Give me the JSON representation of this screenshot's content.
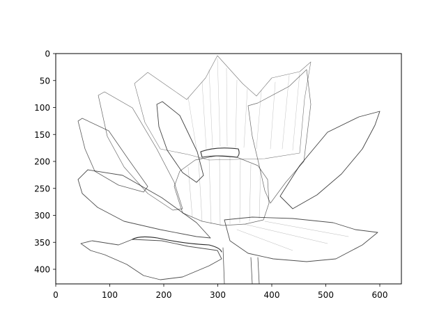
{
  "figure": {
    "image_subject": "lotus-flower-edge-detection",
    "x_axis": {
      "ticks": [
        "0",
        "100",
        "200",
        "300",
        "400",
        "500",
        "600"
      ],
      "range": [
        0,
        640
      ]
    },
    "y_axis": {
      "ticks": [
        "0",
        "50",
        "100",
        "150",
        "200",
        "250",
        "300",
        "350",
        "400"
      ],
      "range": [
        0,
        427
      ],
      "inverted": true
    },
    "colors": {
      "stroke": "#000000",
      "background": "#ffffff"
    }
  }
}
